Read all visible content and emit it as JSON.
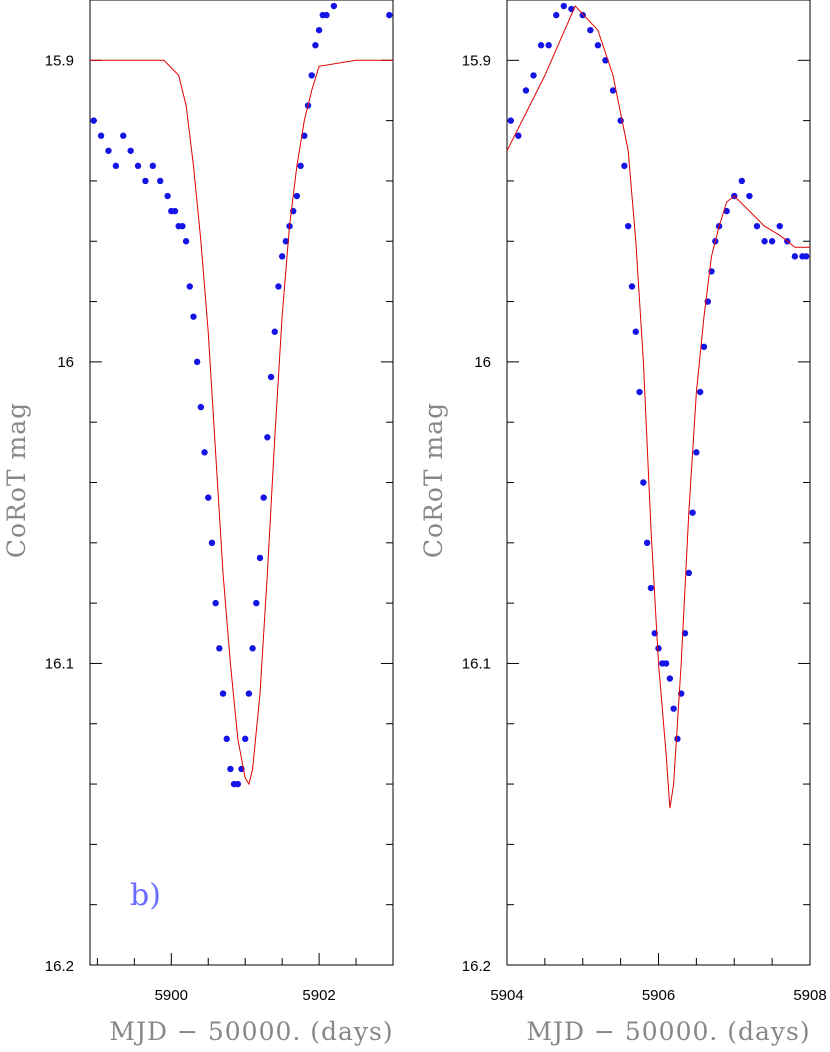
{
  "chart_data": [
    {
      "type": "scatter",
      "panel": "left",
      "xlabel": "MJD − 50000. (days)",
      "ylabel": "CoRoT mag",
      "annotation": "b)",
      "xlim": [
        5898.9,
        5903.0
      ],
      "ylim": [
        16.2,
        15.88
      ],
      "y_inverted": true,
      "x_ticks": [
        5900,
        5902
      ],
      "x_tick_labels": [
        "5900",
        "5902"
      ],
      "y_ticks": [
        15.9,
        16.0,
        16.1,
        16.2
      ],
      "y_tick_labels": [
        "15.9",
        "16",
        "16.1",
        "16.2"
      ],
      "colors": {
        "points": "#1414e6",
        "model": "#e00000"
      },
      "series": [
        {
          "role": "points",
          "x": [
            5898.95,
            5899.05,
            5899.15,
            5899.25,
            5899.35,
            5899.45,
            5899.55,
            5899.65,
            5899.75,
            5899.85,
            5899.95,
            5900.0,
            5900.05,
            5900.1,
            5900.15,
            5900.2,
            5900.25,
            5900.3,
            5900.35,
            5900.4,
            5900.45,
            5900.5,
            5900.55,
            5900.6,
            5900.65,
            5900.7,
            5900.75,
            5900.8,
            5900.85,
            5900.9,
            5900.95,
            5901.0,
            5901.05,
            5901.1,
            5901.15,
            5901.2,
            5901.25,
            5901.3,
            5901.35,
            5901.4,
            5901.45,
            5901.5,
            5901.55,
            5901.6,
            5901.65,
            5901.7,
            5901.75,
            5901.8,
            5901.85,
            5901.9,
            5901.95,
            5902.0,
            5902.05,
            5902.1,
            5902.2,
            5902.95
          ],
          "y": [
            15.92,
            15.925,
            15.93,
            15.935,
            15.925,
            15.93,
            15.935,
            15.94,
            15.935,
            15.94,
            15.945,
            15.95,
            15.95,
            15.955,
            15.955,
            15.96,
            15.975,
            15.985,
            16.0,
            16.015,
            16.03,
            16.045,
            16.06,
            16.08,
            16.095,
            16.11,
            16.125,
            16.135,
            16.14,
            16.14,
            16.135,
            16.125,
            16.11,
            16.095,
            16.08,
            16.065,
            16.045,
            16.025,
            16.005,
            15.99,
            15.975,
            15.965,
            15.96,
            15.955,
            15.95,
            15.945,
            15.935,
            15.925,
            15.915,
            15.905,
            15.895,
            15.89,
            15.885,
            15.885,
            15.882,
            15.885
          ]
        },
        {
          "role": "model",
          "x": [
            5898.9,
            5899.5,
            5899.9,
            5900.1,
            5900.2,
            5900.3,
            5900.4,
            5900.5,
            5900.6,
            5900.7,
            5900.8,
            5900.9,
            5901.0,
            5901.05,
            5901.1,
            5901.2,
            5901.3,
            5901.4,
            5901.5,
            5901.6,
            5901.7,
            5901.8,
            5901.9,
            5902.0,
            5902.5,
            5903.0
          ],
          "y": [
            15.9,
            15.9,
            15.9,
            15.905,
            15.915,
            15.935,
            15.96,
            15.99,
            16.03,
            16.07,
            16.1,
            16.125,
            16.138,
            16.14,
            16.135,
            16.11,
            16.07,
            16.025,
            15.985,
            15.955,
            15.935,
            15.92,
            15.91,
            15.902,
            15.9,
            15.9
          ]
        }
      ]
    },
    {
      "type": "scatter",
      "panel": "right",
      "xlabel": "MJD − 50000. (days)",
      "ylabel": "CoRoT mag",
      "xlim": [
        5904.0,
        5908.0
      ],
      "ylim": [
        16.2,
        15.88
      ],
      "y_inverted": true,
      "x_ticks": [
        5904,
        5906,
        5908
      ],
      "x_tick_labels": [
        "5904",
        "5906",
        "5908"
      ],
      "y_ticks": [
        15.9,
        16.0,
        16.1,
        16.2
      ],
      "y_tick_labels": [
        "15.9",
        "16",
        "16.1",
        "16.2"
      ],
      "colors": {
        "points": "#1414e6",
        "model": "#e00000"
      },
      "series": [
        {
          "role": "points",
          "x": [
            5904.05,
            5904.15,
            5904.25,
            5904.35,
            5904.45,
            5904.55,
            5904.65,
            5904.75,
            5904.85,
            5905.0,
            5905.1,
            5905.2,
            5905.3,
            5905.4,
            5905.5,
            5905.55,
            5905.6,
            5905.65,
            5905.7,
            5905.75,
            5905.8,
            5905.85,
            5905.9,
            5905.95,
            5906.0,
            5906.05,
            5906.1,
            5906.15,
            5906.2,
            5906.25,
            5906.3,
            5906.35,
            5906.4,
            5906.45,
            5906.5,
            5906.55,
            5906.6,
            5906.65,
            5906.7,
            5906.75,
            5906.8,
            5906.9,
            5907.0,
            5907.1,
            5907.2,
            5907.3,
            5907.4,
            5907.5,
            5907.6,
            5907.7,
            5907.8,
            5907.9,
            5907.95
          ],
          "y": [
            15.92,
            15.925,
            15.91,
            15.905,
            15.895,
            15.895,
            15.885,
            15.882,
            15.883,
            15.885,
            15.89,
            15.895,
            15.9,
            15.91,
            15.92,
            15.935,
            15.955,
            15.975,
            15.99,
            16.01,
            16.04,
            16.06,
            16.075,
            16.09,
            16.095,
            16.1,
            16.1,
            16.105,
            16.115,
            16.125,
            16.11,
            16.09,
            16.07,
            16.05,
            16.03,
            16.01,
            15.995,
            15.98,
            15.97,
            15.96,
            15.955,
            15.95,
            15.945,
            15.94,
            15.945,
            15.955,
            15.96,
            15.96,
            15.955,
            15.96,
            15.965,
            15.965,
            15.965
          ]
        },
        {
          "role": "model",
          "x": [
            5904.0,
            5904.5,
            5904.9,
            5905.2,
            5905.4,
            5905.6,
            5905.7,
            5905.8,
            5905.9,
            5906.0,
            5906.1,
            5906.15,
            5906.2,
            5906.3,
            5906.4,
            5906.5,
            5906.6,
            5906.7,
            5906.8,
            5906.9,
            5907.0,
            5907.2,
            5907.4,
            5907.6,
            5907.8,
            5908.0
          ],
          "y": [
            15.93,
            15.905,
            15.882,
            15.89,
            15.905,
            15.93,
            15.96,
            16.0,
            16.055,
            16.1,
            16.13,
            16.148,
            16.14,
            16.1,
            16.05,
            16.01,
            15.985,
            15.965,
            15.955,
            15.947,
            15.945,
            15.95,
            15.955,
            15.958,
            15.962,
            15.962
          ]
        }
      ]
    }
  ]
}
